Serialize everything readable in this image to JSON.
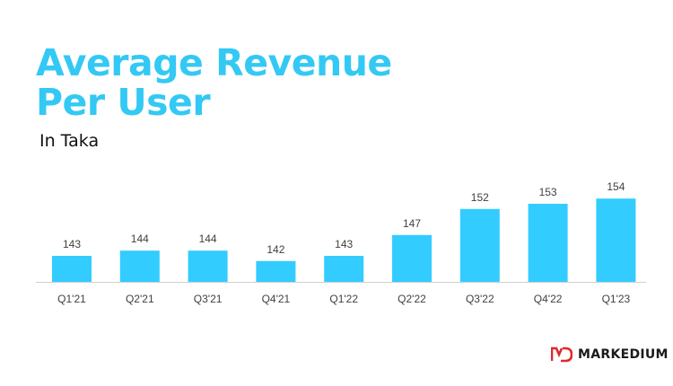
{
  "title_line1": "Average Revenue",
  "title_line2": "Per User",
  "subtitle": "In Taka",
  "brand": {
    "logo_text": "MD",
    "name": "MARKEDIUM",
    "logo_color": "#e0282e"
  },
  "colors": {
    "accent": "#33c9f4",
    "bar": "#33ccff",
    "axis": "#d0d0d0",
    "label": "#404040"
  },
  "chart_data": {
    "type": "bar",
    "categories": [
      "Q1'21",
      "Q2'21",
      "Q3'21",
      "Q4'21",
      "Q1'22",
      "Q2'22",
      "Q3'22",
      "Q4'22",
      "Q1'23"
    ],
    "values": [
      143,
      144,
      144,
      142,
      143,
      147,
      152,
      153,
      154
    ],
    "title": "Average Revenue Per User",
    "subtitle": "In Taka",
    "xlabel": "",
    "ylabel": "",
    "ylim": [
      138,
      156
    ],
    "grid": false,
    "data_labels": true
  }
}
